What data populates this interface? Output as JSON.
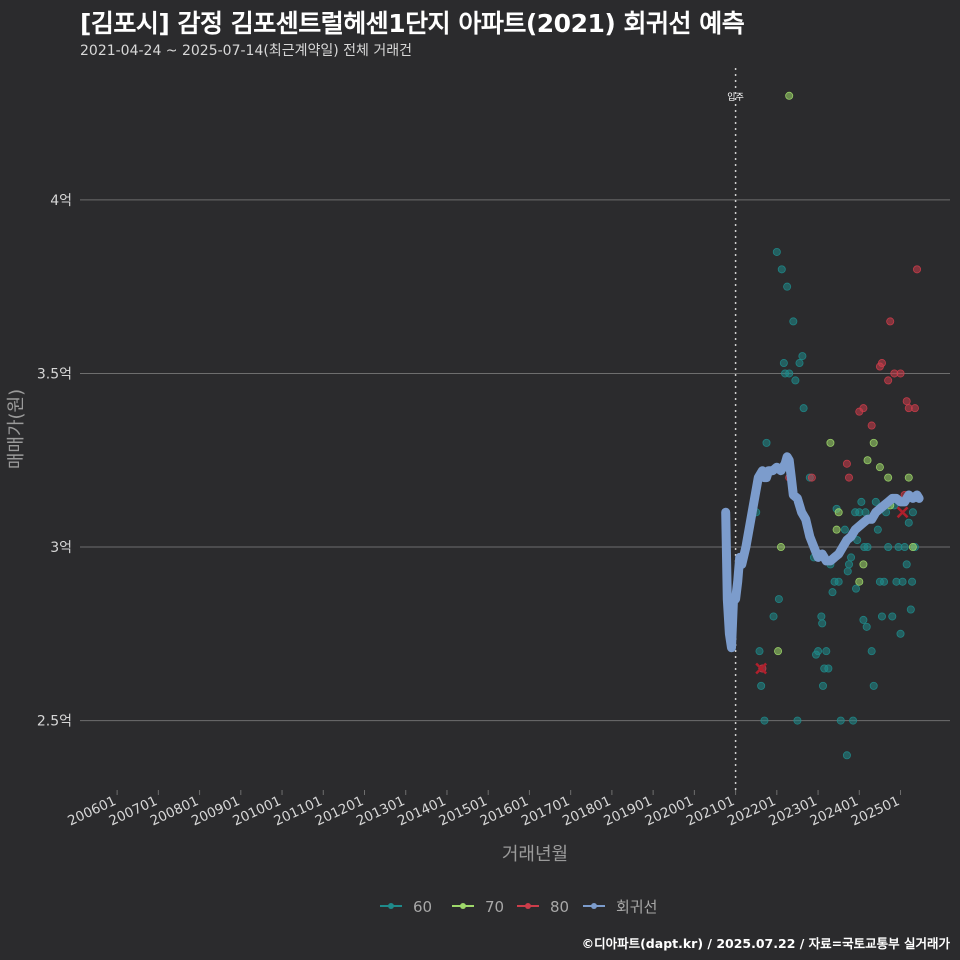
{
  "title": "[김포시] 감정 김포센트럴헤센1단지 아파트(2021) 회귀선 예측",
  "subtitle": "2021-04-24 ~ 2025-07-14(최근계약일) 전체 거래건",
  "footer": "©디아파트(dapt.kr) / 2025.07.22 / 자료=국토교통부 실거래가",
  "colors": {
    "background": "#2b2b2d",
    "grid": "#6e6e6e",
    "s60": "#1f8a8a",
    "s70": "#9ed86a",
    "s80": "#cc3d4a",
    "regression": "#7c9ccc"
  },
  "chart_data": {
    "type": "scatter",
    "xlabel": "거래년월",
    "ylabel": "매매가(원)",
    "x_tick_labels": [
      "200601",
      "200701",
      "200801",
      "200901",
      "201001",
      "201101",
      "201201",
      "201301",
      "201401",
      "201501",
      "201601",
      "201701",
      "201801",
      "201901",
      "202001",
      "202101",
      "202201",
      "202301",
      "202401",
      "202501"
    ],
    "x_range_years": [
      2005.1,
      2026.2
    ],
    "y_ticks": [
      {
        "value": 2.5,
        "label": "2.5억"
      },
      {
        "value": 3.0,
        "label": "3억"
      },
      {
        "value": 3.5,
        "label": "3.5억"
      },
      {
        "value": 4.0,
        "label": "4억"
      }
    ],
    "y_range": [
      2.3,
      4.38
    ],
    "vline": {
      "x": 2021.0,
      "label": "입주"
    },
    "legend": [
      {
        "key": "s60",
        "label": "60"
      },
      {
        "key": "s70",
        "label": "70"
      },
      {
        "key": "s80",
        "label": "80"
      },
      {
        "key": "regression",
        "label": "회귀선"
      }
    ],
    "series": [
      {
        "name": "60",
        "points": [
          [
            2021.5,
            3.1
          ],
          [
            2021.58,
            2.7
          ],
          [
            2021.62,
            2.6
          ],
          [
            2021.7,
            2.5
          ],
          [
            2021.75,
            3.3
          ],
          [
            2021.92,
            2.8
          ],
          [
            2022.0,
            3.85
          ],
          [
            2022.05,
            2.85
          ],
          [
            2022.12,
            3.8
          ],
          [
            2022.17,
            3.53
          ],
          [
            2022.2,
            3.5
          ],
          [
            2022.25,
            3.75
          ],
          [
            2022.3,
            3.5
          ],
          [
            2022.35,
            3.2
          ],
          [
            2022.4,
            3.65
          ],
          [
            2022.45,
            3.48
          ],
          [
            2022.5,
            2.5
          ],
          [
            2022.55,
            3.53
          ],
          [
            2022.62,
            3.55
          ],
          [
            2022.65,
            3.4
          ],
          [
            2022.8,
            3.2
          ],
          [
            2022.9,
            2.97
          ],
          [
            2022.95,
            2.69
          ],
          [
            2023.0,
            2.7
          ],
          [
            2023.08,
            2.8
          ],
          [
            2023.1,
            2.78
          ],
          [
            2023.12,
            2.6
          ],
          [
            2023.15,
            2.65
          ],
          [
            2023.2,
            2.7
          ],
          [
            2023.25,
            2.65
          ],
          [
            2023.3,
            2.95
          ],
          [
            2023.35,
            2.87
          ],
          [
            2023.4,
            2.9
          ],
          [
            2023.45,
            3.11
          ],
          [
            2023.5,
            2.9
          ],
          [
            2023.55,
            2.5
          ],
          [
            2023.6,
            3.0
          ],
          [
            2023.65,
            3.05
          ],
          [
            2023.7,
            2.4
          ],
          [
            2023.72,
            2.93
          ],
          [
            2023.75,
            2.95
          ],
          [
            2023.8,
            2.97
          ],
          [
            2023.85,
            2.5
          ],
          [
            2023.9,
            3.1
          ],
          [
            2023.92,
            2.88
          ],
          [
            2023.95,
            3.02
          ],
          [
            2024.0,
            3.1
          ],
          [
            2024.05,
            3.13
          ],
          [
            2024.1,
            2.79
          ],
          [
            2024.12,
            3.0
          ],
          [
            2024.15,
            3.1
          ],
          [
            2024.18,
            2.77
          ],
          [
            2024.2,
            3.0
          ],
          [
            2024.25,
            3.08
          ],
          [
            2024.3,
            2.7
          ],
          [
            2024.35,
            2.6
          ],
          [
            2024.4,
            3.13
          ],
          [
            2024.45,
            3.05
          ],
          [
            2024.5,
            2.9
          ],
          [
            2024.55,
            2.8
          ],
          [
            2024.6,
            2.9
          ],
          [
            2024.65,
            3.1
          ],
          [
            2024.7,
            3.0
          ],
          [
            2024.8,
            2.8
          ],
          [
            2024.85,
            3.12
          ],
          [
            2024.9,
            2.9
          ],
          [
            2024.95,
            3.0
          ],
          [
            2025.0,
            2.75
          ],
          [
            2025.05,
            2.9
          ],
          [
            2025.1,
            3.0
          ],
          [
            2025.15,
            2.95
          ],
          [
            2025.2,
            3.07
          ],
          [
            2025.25,
            2.82
          ],
          [
            2025.28,
            2.9
          ],
          [
            2025.3,
            3.1
          ],
          [
            2025.35,
            3.0
          ]
        ]
      },
      {
        "name": "70",
        "points": [
          [
            2022.03,
            2.7
          ],
          [
            2022.1,
            3.0
          ],
          [
            2023.3,
            3.3
          ],
          [
            2023.45,
            3.05
          ],
          [
            2023.5,
            3.1
          ],
          [
            2024.0,
            2.9
          ],
          [
            2024.1,
            2.95
          ],
          [
            2024.2,
            3.25
          ],
          [
            2024.35,
            3.3
          ],
          [
            2024.5,
            3.23
          ],
          [
            2024.7,
            3.2
          ],
          [
            2024.75,
            3.12
          ],
          [
            2025.2,
            3.2
          ],
          [
            2025.3,
            3.0
          ]
        ]
      },
      {
        "name": "80",
        "points": [
          [
            2021.65,
            2.65
          ],
          [
            2022.3,
            3.2
          ],
          [
            2022.85,
            3.2
          ],
          [
            2023.7,
            3.24
          ],
          [
            2023.75,
            3.2
          ],
          [
            2024.0,
            3.39
          ],
          [
            2024.1,
            3.4
          ],
          [
            2024.3,
            3.35
          ],
          [
            2024.5,
            3.52
          ],
          [
            2024.55,
            3.53
          ],
          [
            2024.7,
            3.48
          ],
          [
            2024.75,
            3.65
          ],
          [
            2024.85,
            3.5
          ],
          [
            2025.0,
            3.5
          ],
          [
            2025.1,
            3.15
          ],
          [
            2025.15,
            3.42
          ],
          [
            2025.2,
            3.4
          ],
          [
            2025.35,
            3.4
          ],
          [
            2025.4,
            3.8
          ]
        ]
      },
      {
        "name": "70",
        "points": [
          [
            2022.3,
            4.3
          ]
        ]
      }
    ],
    "regression": [
      [
        2020.76,
        3.1
      ],
      [
        2020.8,
        2.85
      ],
      [
        2020.85,
        2.75
      ],
      [
        2020.9,
        2.71
      ],
      [
        2020.95,
        2.85
      ],
      [
        2021.0,
        2.85
      ],
      [
        2021.05,
        2.9
      ],
      [
        2021.1,
        2.97
      ],
      [
        2021.15,
        2.95
      ],
      [
        2021.25,
        3.0
      ],
      [
        2021.4,
        3.1
      ],
      [
        2021.55,
        3.2
      ],
      [
        2021.65,
        3.22
      ],
      [
        2021.7,
        3.2
      ],
      [
        2021.75,
        3.2
      ],
      [
        2021.8,
        3.22
      ],
      [
        2021.9,
        3.22
      ],
      [
        2022.0,
        3.23
      ],
      [
        2022.1,
        3.22
      ],
      [
        2022.2,
        3.24
      ],
      [
        2022.25,
        3.26
      ],
      [
        2022.3,
        3.25
      ],
      [
        2022.35,
        3.2
      ],
      [
        2022.4,
        3.15
      ],
      [
        2022.5,
        3.14
      ],
      [
        2022.6,
        3.1
      ],
      [
        2022.7,
        3.08
      ],
      [
        2022.8,
        3.03
      ],
      [
        2022.9,
        3.0
      ],
      [
        2023.0,
        2.97
      ],
      [
        2023.1,
        2.98
      ],
      [
        2023.2,
        2.96
      ],
      [
        2023.3,
        2.96
      ],
      [
        2023.4,
        2.97
      ],
      [
        2023.5,
        2.98
      ],
      [
        2023.6,
        3.0
      ],
      [
        2023.7,
        3.02
      ],
      [
        2023.8,
        3.03
      ],
      [
        2023.9,
        3.05
      ],
      [
        2024.0,
        3.06
      ],
      [
        2024.1,
        3.07
      ],
      [
        2024.2,
        3.08
      ],
      [
        2024.3,
        3.08
      ],
      [
        2024.4,
        3.1
      ],
      [
        2024.5,
        3.11
      ],
      [
        2024.6,
        3.12
      ],
      [
        2024.7,
        3.13
      ],
      [
        2024.8,
        3.14
      ],
      [
        2024.9,
        3.14
      ],
      [
        2025.0,
        3.13
      ],
      [
        2025.1,
        3.13
      ],
      [
        2025.2,
        3.15
      ],
      [
        2025.3,
        3.14
      ],
      [
        2025.4,
        3.15
      ],
      [
        2025.45,
        3.14
      ]
    ],
    "markers_x": [
      [
        2021.62,
        2.65
      ],
      [
        2025.05,
        3.1
      ]
    ]
  }
}
